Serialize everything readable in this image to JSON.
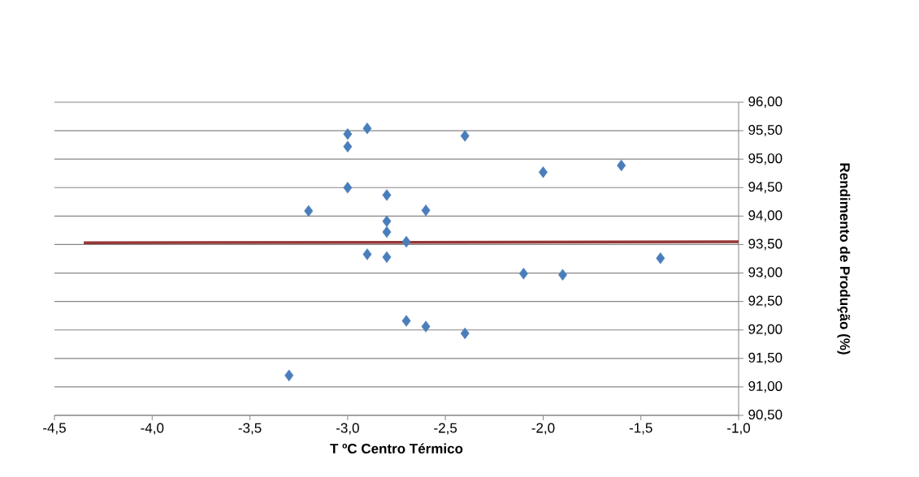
{
  "chart_data": {
    "type": "scatter",
    "xlabel": "T ºC  Centro Térmico",
    "ylabel": "Rendimento de Produção (%)",
    "xlim": [
      -4.5,
      -1.0
    ],
    "ylim": [
      90.5,
      96.0
    ],
    "xticks": [
      {
        "value": -4.5,
        "label": "-4,5"
      },
      {
        "value": -4.0,
        "label": "-4,0"
      },
      {
        "value": -3.5,
        "label": "-3,5"
      },
      {
        "value": -3.0,
        "label": "-3,0"
      },
      {
        "value": -2.5,
        "label": "-2,5"
      },
      {
        "value": -2.0,
        "label": "-2,0"
      },
      {
        "value": -1.5,
        "label": "-1,5"
      },
      {
        "value": -1.0,
        "label": "-1,0"
      }
    ],
    "yticks": [
      {
        "value": 90.5,
        "label": "90,50"
      },
      {
        "value": 91.0,
        "label": "91,00"
      },
      {
        "value": 91.5,
        "label": "91,50"
      },
      {
        "value": 92.0,
        "label": "92,00"
      },
      {
        "value": 92.5,
        "label": "92,50"
      },
      {
        "value": 93.0,
        "label": "93,00"
      },
      {
        "value": 93.5,
        "label": "93,50"
      },
      {
        "value": 94.0,
        "label": "94,00"
      },
      {
        "value": 94.5,
        "label": "94,50"
      },
      {
        "value": 95.0,
        "label": "95,00"
      },
      {
        "value": 95.5,
        "label": "95,50"
      },
      {
        "value": 96.0,
        "label": "96,00"
      }
    ],
    "grid": "y",
    "marker": "diamond",
    "series": [
      {
        "color": "#4a7ebb",
        "x": [
          -3.0,
          -2.9,
          -3.0,
          -2.4,
          -3.0,
          -2.8,
          -3.2,
          -2.6,
          -2.8,
          -2.8,
          -2.7,
          -2.9,
          -2.8,
          -2.7,
          -2.6,
          -2.4,
          -3.3,
          -2.0,
          -1.6,
          -2.1,
          -1.9,
          -1.4
        ],
        "values": [
          95.44,
          95.54,
          95.22,
          95.41,
          94.5,
          94.37,
          94.09,
          94.1,
          93.91,
          93.72,
          93.55,
          93.33,
          93.28,
          92.16,
          92.06,
          91.94,
          91.2,
          94.77,
          94.89,
          92.99,
          92.97,
          93.26
        ]
      },
      {
        "type": "line",
        "color": "#953735",
        "marker": "none",
        "line_style": "solid",
        "x": [
          -4.35,
          -1.0
        ],
        "values": [
          93.53,
          93.55
        ]
      }
    ]
  }
}
